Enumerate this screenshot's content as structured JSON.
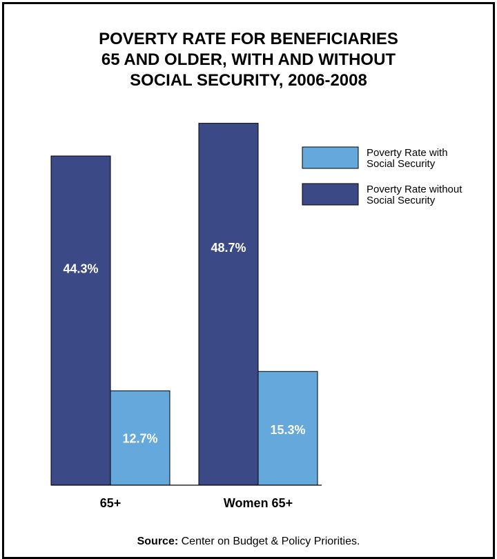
{
  "chart_data": {
    "type": "bar",
    "title_lines": [
      "POVERTY RATE FOR BENEFICIARIES",
      "65 AND OLDER, WITH AND WITHOUT",
      "SOCIAL SECURITY, 2006-2008"
    ],
    "categories": [
      "65+",
      "Women 65+"
    ],
    "series": [
      {
        "name": "Poverty Rate without Social Security",
        "values": [
          44.3,
          48.7
        ],
        "labels": [
          "44.3%",
          "48.7%"
        ],
        "color": "#3b4a86"
      },
      {
        "name": "Poverty Rate with Social Security",
        "values": [
          12.7,
          15.3
        ],
        "labels": [
          "12.7%",
          "15.3%"
        ],
        "color": "#65a9dc"
      }
    ],
    "legend": {
      "placement": "top-right",
      "items": [
        {
          "line1": "Poverty Rate with",
          "line2": "Social Security",
          "color": "#65a9dc"
        },
        {
          "line1": "Poverty Rate without",
          "line2": "Social Security",
          "color": "#3b4a86"
        }
      ]
    },
    "ylim": [
      0,
      60
    ],
    "grid": false
  },
  "source": {
    "label": "Source:",
    "text": " Center on Budget & Policy Priorities."
  }
}
